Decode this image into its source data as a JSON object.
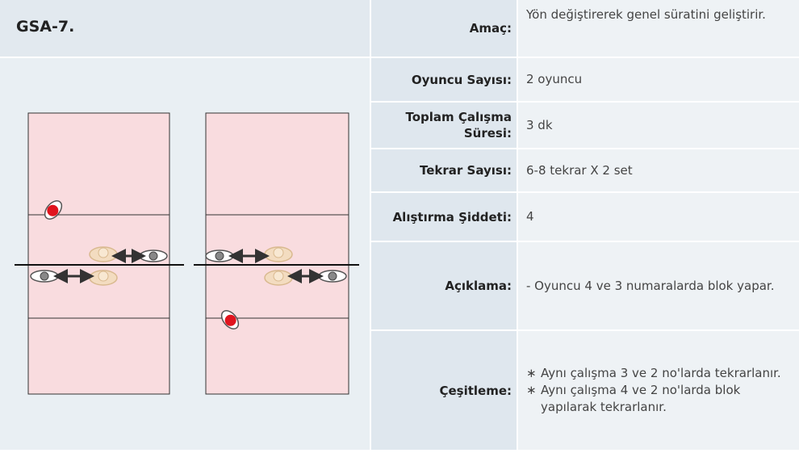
{
  "header": {
    "title": "GSA-7."
  },
  "table": {
    "rows": [
      {
        "label": "Amaç:",
        "value": "Yön değiştirerek genel süratini geliştirir."
      },
      {
        "label": "Oyuncu Sayısı:",
        "value": "2 oyuncu"
      },
      {
        "label": "Toplam Çalışma Süresi:",
        "value": "3 dk"
      },
      {
        "label": "Tekrar Sayısı:",
        "value": "6-8 tekrar X 2 set"
      },
      {
        "label": "Alıştırma Şiddeti:",
        "value": "4"
      },
      {
        "label": "Açıklama:",
        "value": "- Oyuncu 4 ve 3 numaralarda blok yapar."
      },
      {
        "label": "Çeşitleme:",
        "items": [
          "Aynı çalışma 3 ve 2 no'larda tekrarlanır.",
          "Aynı çalışma 4 ve 2 no'larda blok yapılarak tekrarlanır."
        ]
      }
    ]
  }
}
